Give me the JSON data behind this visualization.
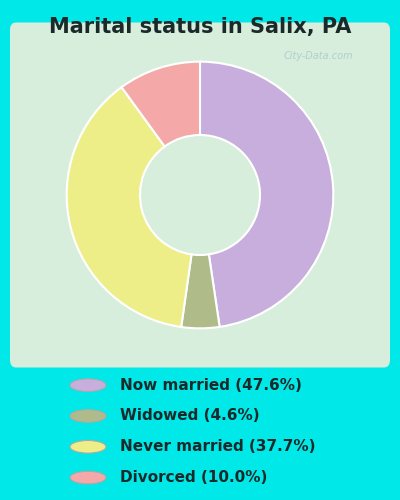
{
  "title": "Marital status in Salix, PA",
  "slices": [
    47.6,
    4.6,
    37.7,
    10.0
  ],
  "labels": [
    "Now married (47.6%)",
    "Widowed (4.6%)",
    "Never married (37.7%)",
    "Divorced (10.0%)"
  ],
  "colors": [
    "#c8aedd",
    "#b0bb8a",
    "#eeee88",
    "#f5a8a8"
  ],
  "startangle": 90,
  "bg_cyan": "#00e8e8",
  "chart_bg": "#d8eedc",
  "title_fontsize": 15,
  "legend_fontsize": 11,
  "title_color": "#1a2a2a",
  "legend_text_color": "#1a2a2a",
  "watermark": "City-Data.com",
  "donut_width": 0.55
}
